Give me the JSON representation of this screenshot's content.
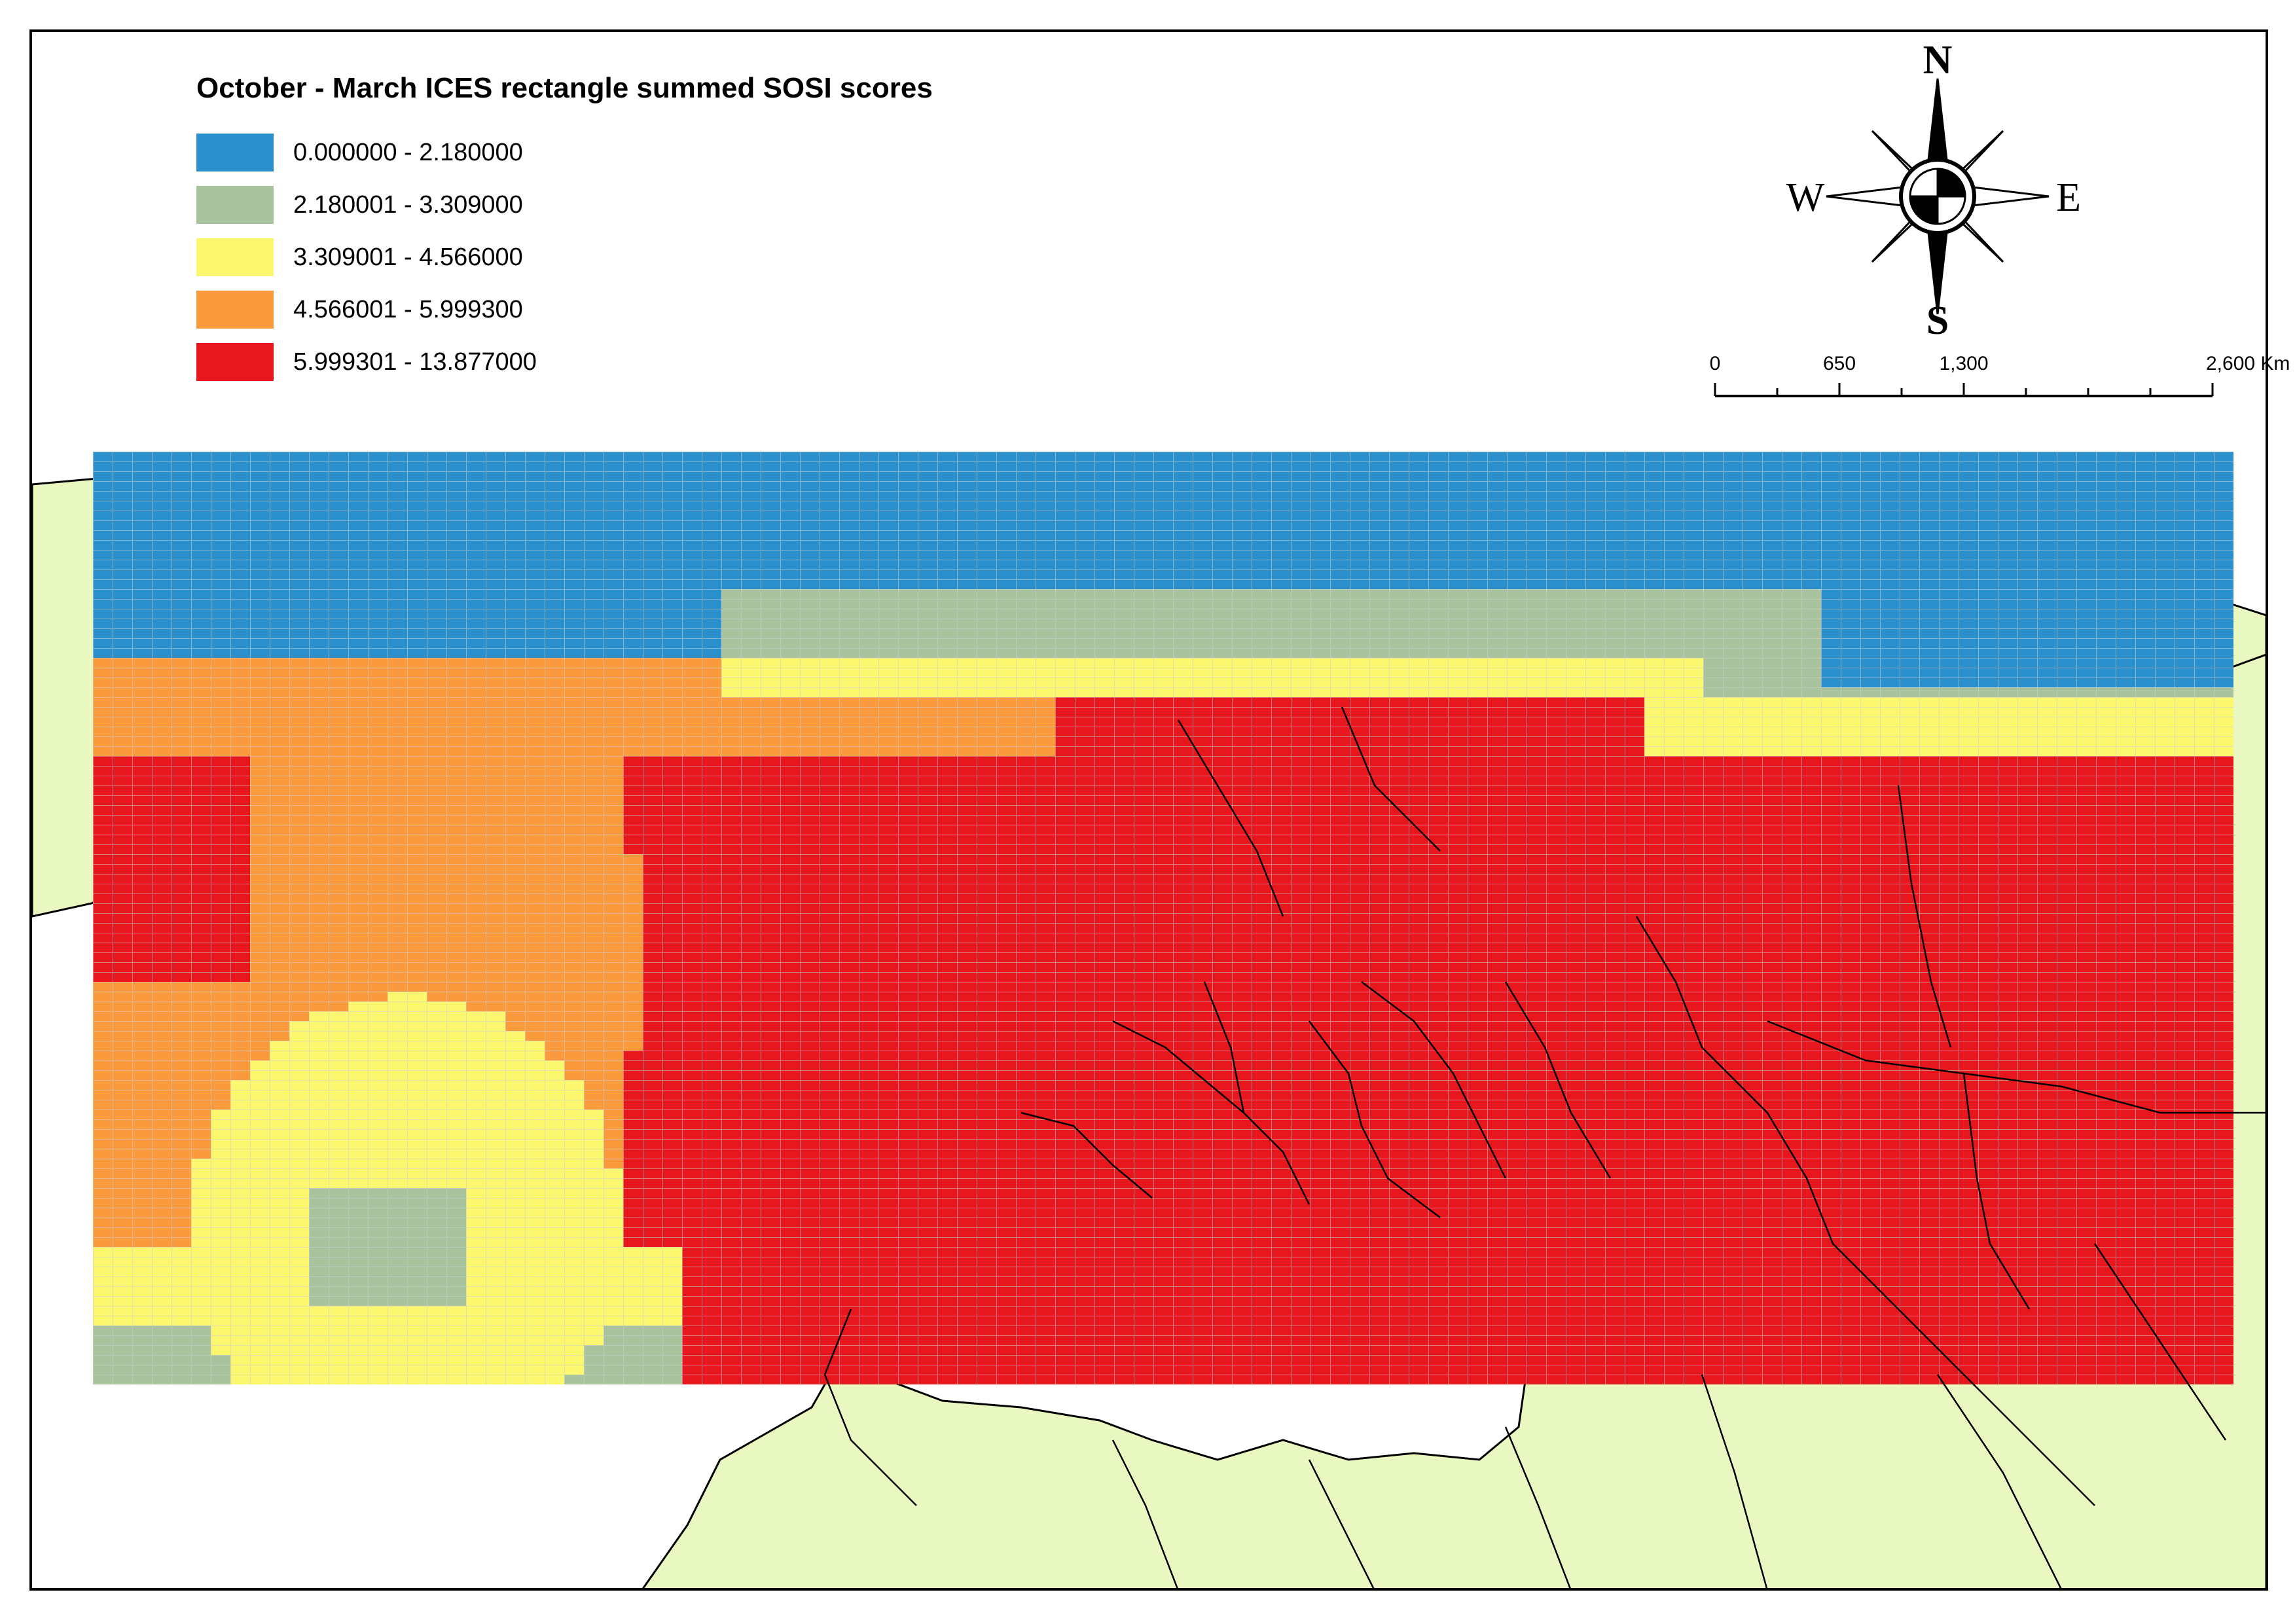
{
  "legend": {
    "title": "October - March ICES rectangle summed SOSI scores",
    "classes": [
      {
        "label": "0.000000 - 2.180000",
        "color": "#2b8fcb"
      },
      {
        "label": "2.180001 - 3.309000",
        "color": "#a8c39e"
      },
      {
        "label": "3.309001 - 4.566000",
        "color": "#fbf76e"
      },
      {
        "label": "4.566001 - 5.999300",
        "color": "#f99a3c"
      },
      {
        "label": "5.999301 - 13.877000",
        "color": "#e8171d"
      }
    ]
  },
  "compass": {
    "north": "N",
    "south": "S",
    "east": "E",
    "west": "W"
  },
  "scalebar": {
    "ticks": [
      {
        "label": "0",
        "km": 0
      },
      {
        "label": "650",
        "km": 650
      },
      {
        "label": "1,300",
        "km": 1300
      },
      {
        "label": "2,600 Km",
        "km": 2600
      }
    ]
  },
  "colors": {
    "land": "#e9f7c0",
    "sea": "#ffffff",
    "outline": "#000000",
    "grid": "#cfcfcf"
  }
}
